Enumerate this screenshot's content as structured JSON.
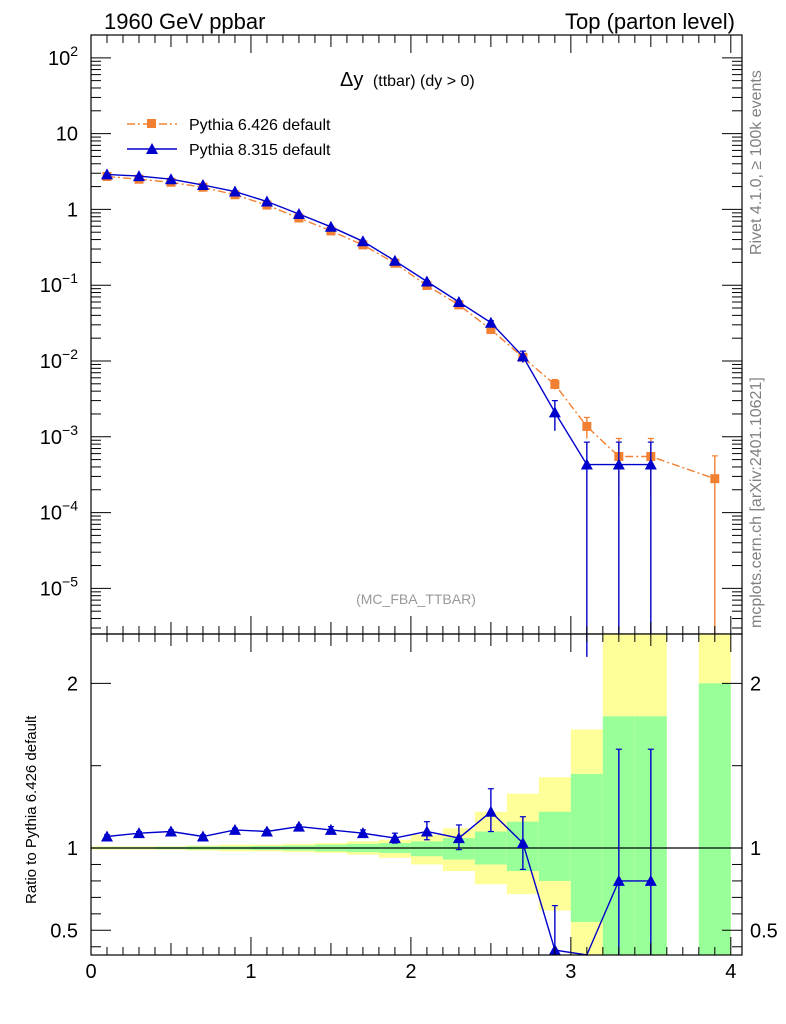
{
  "header": {
    "left": "1960 GeV ppbar",
    "right": "Top (parton level)"
  },
  "side_labels": {
    "rivet": "Rivet 4.1.0, ≥ 100k events",
    "mcplots": "mcplots.cern.ch [arXiv:2401.10621]"
  },
  "chart_data": [
    {
      "type": "line",
      "title_main": "Δy",
      "title_sub": "(ttbar) (dy > 0)",
      "watermark": "(MC_FBA_TTBAR)",
      "xlim": [
        0,
        4.07
      ],
      "y_scale": "log",
      "ylim": [
        2.5e-06,
        200
      ],
      "y_ticks": [
        {
          "value": 100,
          "base": "10",
          "exp": "2"
        },
        {
          "value": 10,
          "base": "10",
          "exp": ""
        },
        {
          "value": 1,
          "base": "1",
          "exp": ""
        },
        {
          "value": 0.1,
          "base": "10",
          "exp": "−1"
        },
        {
          "value": 0.01,
          "base": "10",
          "exp": "−2"
        },
        {
          "value": 0.001,
          "base": "10",
          "exp": "−3"
        },
        {
          "value": 0.0001,
          "base": "10",
          "exp": "−4"
        },
        {
          "value": 1e-05,
          "base": "10",
          "exp": "−5"
        }
      ],
      "legend_position": "top-left",
      "series": [
        {
          "name": "Pythia 6.426 default",
          "color": "#f28033",
          "style": "dash-dot",
          "marker": "square",
          "x": [
            0.1,
            0.3,
            0.5,
            0.7,
            0.9,
            1.1,
            1.3,
            1.5,
            1.7,
            1.9,
            2.1,
            2.3,
            2.5,
            2.7,
            2.9,
            3.1,
            3.3,
            3.5,
            3.9
          ],
          "y": [
            2.72,
            2.5,
            2.28,
            1.96,
            1.56,
            1.14,
            0.77,
            0.52,
            0.34,
            0.195,
            0.099,
            0.055,
            0.026,
            0.0112,
            0.0049,
            0.00137,
            0.00055,
            0.00055,
            0.00028
          ],
          "y_low": [
            2.7,
            2.48,
            2.26,
            1.94,
            1.54,
            1.12,
            0.76,
            0.51,
            0.335,
            0.19,
            0.097,
            0.053,
            0.024,
            0.0102,
            0.0042,
            0.00095,
            0.00016,
            0.00016,
            1e-07
          ],
          "y_high": [
            2.74,
            2.52,
            2.3,
            1.98,
            1.58,
            1.16,
            0.78,
            0.53,
            0.345,
            0.2,
            0.101,
            0.057,
            0.028,
            0.0122,
            0.0057,
            0.0018,
            0.00095,
            0.00095,
            0.00056
          ]
        },
        {
          "name": "Pythia 8.315 default",
          "color": "#0000cc",
          "style": "solid",
          "marker": "triangle",
          "x": [
            0.1,
            0.3,
            0.5,
            0.7,
            0.9,
            1.1,
            1.3,
            1.5,
            1.7,
            1.9,
            2.1,
            2.3,
            2.5,
            2.7,
            2.9,
            3.1,
            3.3,
            3.5
          ],
          "y": [
            2.9,
            2.75,
            2.5,
            2.1,
            1.72,
            1.27,
            0.87,
            0.59,
            0.38,
            0.21,
            0.112,
            0.06,
            0.032,
            0.0115,
            0.0021,
            0.00043,
            0.00043,
            0.00043
          ],
          "y_low": [
            2.88,
            2.73,
            2.48,
            2.08,
            1.7,
            1.25,
            0.86,
            0.58,
            0.37,
            0.205,
            0.109,
            0.058,
            0.03,
            0.0095,
            0.0012,
            1e-07,
            1e-07,
            1e-07
          ],
          "y_high": [
            2.92,
            2.77,
            2.52,
            2.12,
            1.74,
            1.29,
            0.88,
            0.6,
            0.39,
            0.215,
            0.115,
            0.062,
            0.034,
            0.0135,
            0.003,
            0.00085,
            0.00085,
            0.00085
          ]
        }
      ]
    },
    {
      "type": "line",
      "ylabel": "Ratio to Pythia 6.426 default",
      "xlim": [
        0,
        4.07
      ],
      "ylim": [
        0.35,
        2.3
      ],
      "y_ticks": [
        0.5,
        1,
        2
      ],
      "y_tick_labels": [
        "0.5",
        "1",
        "2"
      ],
      "x_ticks": [
        0,
        1,
        2,
        3,
        4
      ],
      "x_tick_labels": [
        "0",
        "1",
        "2",
        "3",
        "4"
      ],
      "reference_line": 1,
      "bands": {
        "yellow_color": "#ffff99",
        "green_color": "#99ff99",
        "x_edges": [
          0,
          0.2,
          0.4,
          0.6,
          0.8,
          1.0,
          1.2,
          1.4,
          1.6,
          1.8,
          2.0,
          2.2,
          2.4,
          2.6,
          2.8,
          3.0,
          3.2,
          3.4,
          3.6,
          3.8,
          4.0
        ],
        "yellow": [
          [
            0.99,
            1.01
          ],
          [
            0.99,
            1.01
          ],
          [
            0.99,
            1.01
          ],
          [
            0.985,
            1.015
          ],
          [
            0.98,
            1.02
          ],
          [
            0.98,
            1.02
          ],
          [
            0.975,
            1.025
          ],
          [
            0.97,
            1.03
          ],
          [
            0.96,
            1.04
          ],
          [
            0.94,
            1.05
          ],
          [
            0.9,
            1.08
          ],
          [
            0.86,
            1.12
          ],
          [
            0.78,
            1.22
          ],
          [
            0.72,
            1.33
          ],
          [
            0.62,
            1.43
          ],
          [
            0.3,
            1.72
          ],
          [
            0.3,
            2.3
          ],
          [
            0.3,
            2.3
          ],
          null,
          [
            0.3,
            2.3
          ]
        ],
        "green": [
          [
            0.995,
            1.005
          ],
          [
            0.995,
            1.005
          ],
          [
            0.993,
            1.007
          ],
          [
            0.99,
            1.01
          ],
          [
            0.99,
            1.01
          ],
          [
            0.988,
            1.012
          ],
          [
            0.985,
            1.015
          ],
          [
            0.98,
            1.02
          ],
          [
            0.975,
            1.025
          ],
          [
            0.97,
            1.03
          ],
          [
            0.95,
            1.04
          ],
          [
            0.93,
            1.06
          ],
          [
            0.9,
            1.1
          ],
          [
            0.86,
            1.16
          ],
          [
            0.8,
            1.22
          ],
          [
            0.55,
            1.45
          ],
          [
            0.3,
            1.8
          ],
          [
            0.3,
            1.8
          ],
          null,
          [
            0.3,
            2.0
          ]
        ]
      },
      "series": [
        {
          "name": "Pythia 8.315 default",
          "color": "#0000cc",
          "x": [
            0.1,
            0.3,
            0.5,
            0.7,
            0.9,
            1.1,
            1.3,
            1.5,
            1.7,
            1.9,
            2.1,
            2.3,
            2.5,
            2.7,
            2.9,
            3.1,
            3.3,
            3.5
          ],
          "y": [
            1.07,
            1.09,
            1.1,
            1.07,
            1.11,
            1.1,
            1.13,
            1.11,
            1.09,
            1.06,
            1.1,
            1.06,
            1.22,
            1.03,
            0.38,
            0.3,
            0.8,
            0.8
          ],
          "y_low": [
            1.06,
            1.08,
            1.09,
            1.06,
            1.1,
            1.09,
            1.12,
            1.09,
            1.07,
            1.03,
            1.05,
            0.99,
            1.1,
            0.87,
            0.3,
            0.3,
            0.3,
            0.3
          ],
          "y_high": [
            1.08,
            1.1,
            1.11,
            1.08,
            1.12,
            1.11,
            1.14,
            1.13,
            1.11,
            1.09,
            1.16,
            1.14,
            1.36,
            1.19,
            0.65,
            0.3,
            1.6,
            1.6
          ]
        }
      ]
    }
  ]
}
